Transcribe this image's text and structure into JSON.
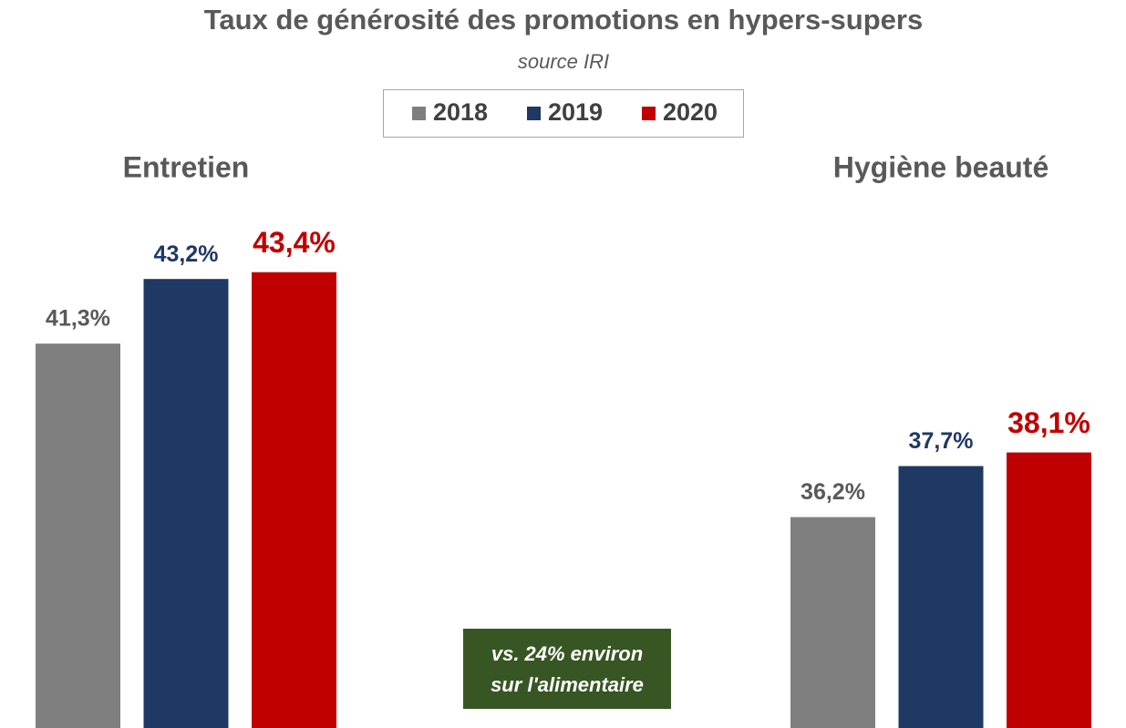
{
  "chart_data": {
    "type": "bar",
    "title": "Taux de générosité des promotions en hypers-supers",
    "subtitle": "source IRI",
    "categories": [
      "Entretien",
      "Hygiène beauté"
    ],
    "series": [
      {
        "name": "2018",
        "color": "#7f7f7f",
        "values": [
          41.3,
          36.2
        ],
        "value_labels": [
          "41,3%",
          "36,2%"
        ]
      },
      {
        "name": "2019",
        "color": "#1f3864",
        "values": [
          43.2,
          37.7
        ],
        "value_labels": [
          "43,2%",
          "37,7%"
        ]
      },
      {
        "name": "2020",
        "color": "#c00000",
        "values": [
          43.4,
          38.1
        ],
        "value_labels": [
          "43,4%",
          "38,1%"
        ]
      }
    ],
    "ylim": [
      30,
      45
    ],
    "annotation": [
      "vs. 24% environ",
      "sur l'alimentaire"
    ],
    "legend": "top"
  }
}
